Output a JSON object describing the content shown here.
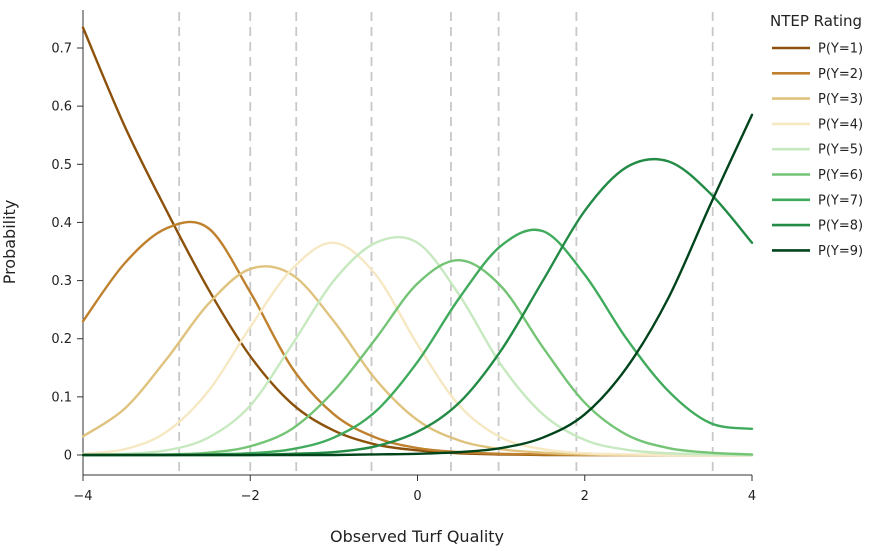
{
  "chart_data": {
    "type": "line",
    "xlabel": "Observed Turf Quality",
    "ylabel": "Probability",
    "xlim": [
      -4,
      4
    ],
    "ylim": [
      0,
      0.75
    ],
    "x_ticks": [
      -4,
      -2,
      0,
      2,
      4
    ],
    "x_tick_labels": [
      "−4",
      "−2",
      "0",
      "2",
      "4"
    ],
    "y_ticks": [
      0,
      0.1,
      0.2,
      0.3,
      0.4,
      0.5,
      0.6,
      0.7
    ],
    "y_tick_labels": [
      "0",
      "0.1",
      "0.2",
      "0.3",
      "0.4",
      "0.5",
      "0.6",
      "0.7"
    ],
    "thresholds": [
      -2.85,
      -2.0,
      -1.45,
      -0.55,
      0.4,
      0.97,
      1.9,
      3.53
    ],
    "grid": false,
    "legend": {
      "title": "NTEP Rating",
      "placement": "top-right"
    },
    "x": [
      -4,
      -3.5,
      -3,
      -2.5,
      -2,
      -1.5,
      -1,
      -0.5,
      0,
      0.5,
      1,
      1.5,
      2,
      2.5,
      3,
      3.5,
      4
    ],
    "series": [
      {
        "name": "P(Y=1)",
        "color": "#8c510a",
        "values": [
          0.735,
          0.565,
          0.42,
          0.285,
          0.17,
          0.088,
          0.042,
          0.018,
          0.008,
          0.003,
          0.001,
          0.0,
          0.0,
          0.0,
          0.0,
          0.0,
          0.0
        ]
      },
      {
        "name": "P(Y=2)",
        "color": "#bf812d",
        "values": [
          0.23,
          0.33,
          0.39,
          0.39,
          0.28,
          0.15,
          0.07,
          0.03,
          0.012,
          0.005,
          0.002,
          0.001,
          0.0,
          0.0,
          0.0,
          0.0,
          0.0
        ]
      },
      {
        "name": "P(Y=3)",
        "color": "#dfc27d",
        "values": [
          0.032,
          0.08,
          0.165,
          0.26,
          0.32,
          0.31,
          0.23,
          0.13,
          0.06,
          0.025,
          0.01,
          0.004,
          0.001,
          0.0,
          0.0,
          0.0,
          0.0
        ]
      },
      {
        "name": "P(Y=4)",
        "color": "#f6e8c3",
        "values": [
          0.002,
          0.01,
          0.04,
          0.11,
          0.22,
          0.32,
          0.365,
          0.31,
          0.19,
          0.085,
          0.03,
          0.01,
          0.003,
          0.001,
          0.0,
          0.0,
          0.0
        ]
      },
      {
        "name": "P(Y=5)",
        "color": "#c7e9c0",
        "values": [
          0.0,
          0.002,
          0.008,
          0.03,
          0.085,
          0.19,
          0.3,
          0.365,
          0.365,
          0.275,
          0.155,
          0.07,
          0.026,
          0.009,
          0.003,
          0.001,
          0.0
        ]
      },
      {
        "name": "P(Y=6)",
        "color": "#74c476",
        "values": [
          0.0,
          0.0,
          0.001,
          0.004,
          0.015,
          0.045,
          0.11,
          0.2,
          0.295,
          0.335,
          0.29,
          0.185,
          0.09,
          0.035,
          0.012,
          0.004,
          0.001
        ]
      },
      {
        "name": "P(Y=7)",
        "color": "#41ab5d",
        "values": [
          0.0,
          0.0,
          0.0,
          0.001,
          0.003,
          0.01,
          0.03,
          0.075,
          0.16,
          0.27,
          0.36,
          0.385,
          0.31,
          0.2,
          0.11,
          0.055,
          0.045
        ]
      },
      {
        "name": "P(Y=8)",
        "color": "#238b45",
        "values": [
          0.0,
          0.0,
          0.0,
          0.0,
          0.0,
          0.002,
          0.005,
          0.015,
          0.04,
          0.09,
          0.18,
          0.3,
          0.42,
          0.495,
          0.505,
          0.45,
          0.365
        ]
      },
      {
        "name": "P(Y=9)",
        "color": "#00441b",
        "values": [
          0.0,
          0.0,
          0.0,
          0.0,
          0.0,
          0.0,
          0.0,
          0.001,
          0.002,
          0.005,
          0.012,
          0.03,
          0.07,
          0.15,
          0.27,
          0.43,
          0.585
        ]
      }
    ]
  }
}
